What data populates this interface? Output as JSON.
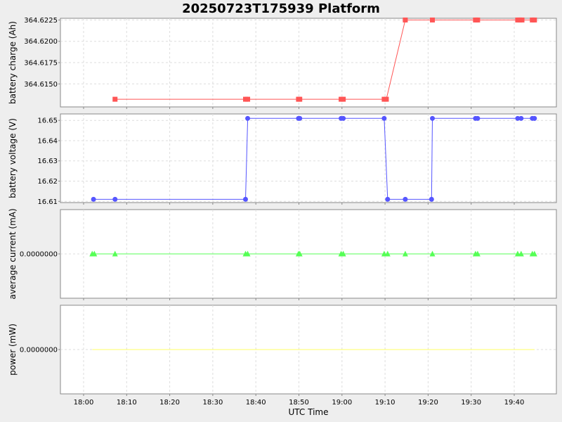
{
  "chart_data": {
    "type": "line",
    "title": "20250723T175939 Platform",
    "xlabel": "UTC Time",
    "x_ticks": [
      "18:00",
      "18:10",
      "18:20",
      "18:30",
      "18:40",
      "18:50",
      "19:00",
      "19:10",
      "19:20",
      "19:30",
      "19:40"
    ],
    "x_range_minutes": [
      -3.1,
      82.5
    ],
    "subplots": [
      {
        "ylabel": "battery charge (Ah)",
        "color": "#ff5555",
        "marker": "square",
        "ylim": [
          364.6123,
          364.6227
        ],
        "yticks": [
          364.615,
          364.6175,
          364.62,
          364.6225
        ],
        "ytick_labels": [
          "364.6150",
          "364.6175",
          "364.6200",
          "364.6225"
        ],
        "x": [
          7.3,
          37.6,
          38.1,
          49.9,
          50.2,
          59.8,
          60.3,
          69.8,
          70.3,
          74.7,
          81.0,
          91.0,
          91.5,
          100.8,
          101.3,
          101.8,
          104.2,
          104.7
        ],
        "y": [
          364.6132,
          364.6132,
          364.6132,
          364.6132,
          364.6132,
          364.6132,
          364.6132,
          364.6132,
          364.6132,
          364.6225,
          364.6225,
          364.6225,
          364.6225,
          364.6225,
          364.6225,
          364.6225,
          364.6225,
          364.6225
        ]
      },
      {
        "ylabel": "battery voltage (V)",
        "color": "#5555ff",
        "marker": "circle",
        "ylim": [
          16.6094,
          16.6532
        ],
        "yticks": [
          16.61,
          16.62,
          16.63,
          16.64,
          16.65
        ],
        "ytick_labels": [
          "16.61",
          "16.62",
          "16.63",
          "16.64",
          "16.65"
        ],
        "x": [
          2.3,
          7.3,
          37.6,
          38.1,
          49.9,
          50.2,
          59.8,
          60.3,
          69.8,
          70.6,
          74.7,
          80.8,
          81.0,
          91.0,
          91.5,
          100.8,
          101.6,
          104.2,
          104.7
        ],
        "y": [
          16.611,
          16.611,
          16.611,
          16.651,
          16.651,
          16.651,
          16.651,
          16.651,
          16.651,
          16.611,
          16.611,
          16.611,
          16.651,
          16.651,
          16.651,
          16.651,
          16.651,
          16.651,
          16.651
        ]
      },
      {
        "ylabel": "average current (mA)",
        "color": "#55ff55",
        "marker": "triangle",
        "ylim": [
          -1,
          1
        ],
        "yticks": [
          0
        ],
        "ytick_labels": [
          "0.0000000"
        ],
        "x": [
          2.0,
          2.5,
          7.3,
          37.6,
          38.1,
          49.9,
          50.2,
          59.8,
          60.3,
          69.8,
          70.6,
          74.7,
          81.0,
          91.0,
          91.5,
          100.8,
          101.6,
          104.2,
          104.7
        ],
        "y": [
          0,
          0,
          0,
          0,
          0,
          0,
          0,
          0,
          0,
          0,
          0,
          0,
          0,
          0,
          0,
          0,
          0,
          0,
          0
        ]
      },
      {
        "ylabel": "power (mW)",
        "color": "#ffff66",
        "marker": "none",
        "ylim": [
          -1,
          1
        ],
        "yticks": [
          0
        ],
        "ytick_labels": [
          "0.0000000"
        ],
        "x": [
          2.0,
          104.7
        ],
        "y": [
          0,
          0
        ]
      }
    ]
  }
}
